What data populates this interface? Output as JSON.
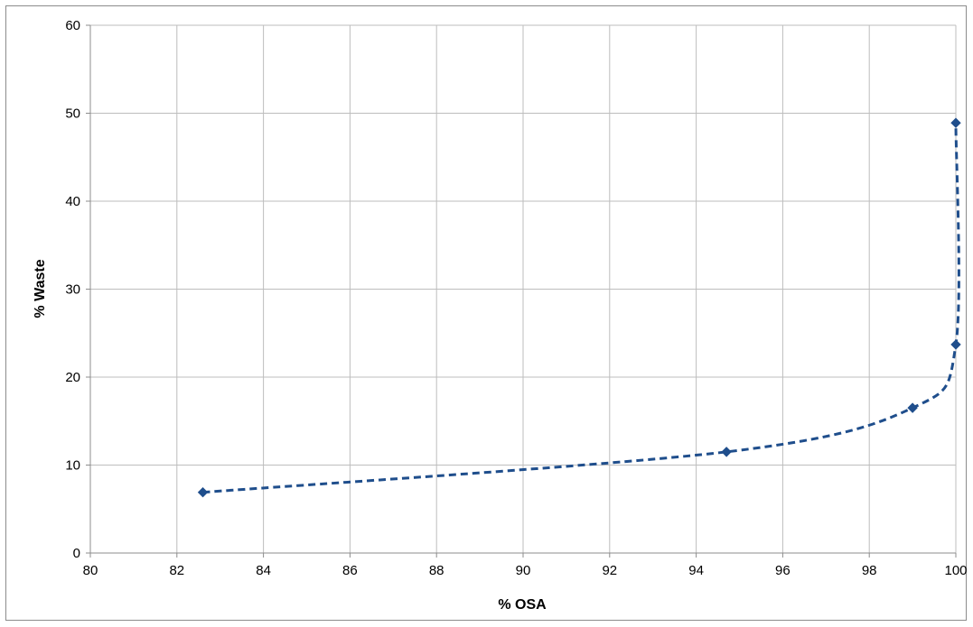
{
  "chart_data": {
    "type": "line",
    "title": "",
    "xlabel": "% OSA",
    "ylabel": "% Waste",
    "xlim": [
      80,
      100
    ],
    "ylim": [
      0,
      60
    ],
    "x_ticks": [
      80,
      82,
      84,
      86,
      88,
      90,
      92,
      94,
      96,
      98,
      100
    ],
    "y_ticks": [
      0,
      10,
      20,
      30,
      40,
      50,
      60
    ],
    "grid": true,
    "legend": "none",
    "series": [
      {
        "color": "#1f4e8c",
        "line_style": "dashed",
        "marker": "diamond",
        "smooth": true,
        "points": [
          {
            "x": 82.6,
            "y": 6.9
          },
          {
            "x": 94.7,
            "y": 11.5
          },
          {
            "x": 99.0,
            "y": 16.5
          },
          {
            "x": 100.0,
            "y": 23.7
          },
          {
            "x": 100.0,
            "y": 48.9
          }
        ]
      }
    ]
  }
}
